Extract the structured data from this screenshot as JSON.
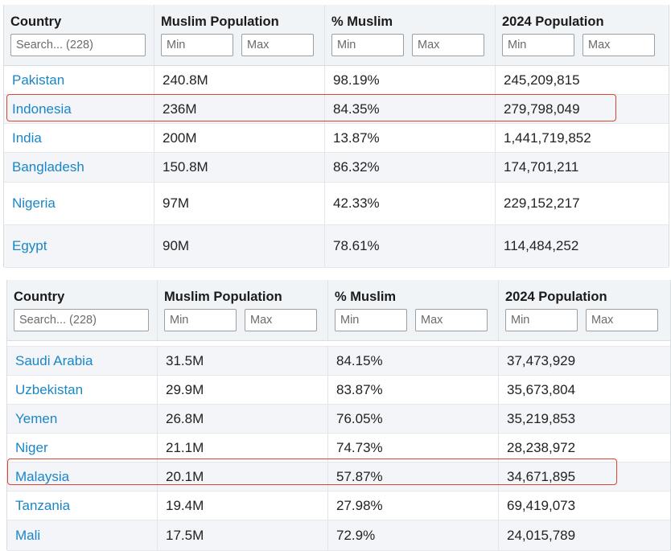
{
  "table1": {
    "headers": {
      "country": "Country",
      "muslim_population": "Muslim Population",
      "percent_muslim": "% Muslim",
      "population_2024": "2024 Population"
    },
    "filters": {
      "search_placeholder": "Search... (228)",
      "min_placeholder": "Min",
      "max_placeholder": "Max"
    },
    "rows": [
      {
        "country": "Pakistan",
        "muslim": "240.8M",
        "percent": "98.19%",
        "pop": "245,209,815"
      },
      {
        "country": "Indonesia",
        "muslim": "236M",
        "percent": "84.35%",
        "pop": "279,798,049"
      },
      {
        "country": "India",
        "muslim": "200M",
        "percent": "13.87%",
        "pop": "1,441,719,852"
      },
      {
        "country": "Bangladesh",
        "muslim": "150.8M",
        "percent": "86.32%",
        "pop": "174,701,211"
      },
      {
        "country": "Nigeria",
        "muslim": "97M",
        "percent": "42.33%",
        "pop": "229,152,217"
      },
      {
        "country": "Egypt",
        "muslim": "90M",
        "percent": "78.61%",
        "pop": "114,484,252"
      }
    ],
    "highlighted_row": "Indonesia"
  },
  "table2": {
    "headers": {
      "country": "Country",
      "muslim_population": "Muslim Population",
      "percent_muslim": "% Muslim",
      "population_2024": "2024 Population"
    },
    "filters": {
      "search_placeholder": "Search... (228)",
      "min_placeholder": "Min",
      "max_placeholder": "Max"
    },
    "rows": [
      {
        "country": "Saudi Arabia",
        "muslim": "31.5M",
        "percent": "84.15%",
        "pop": "37,473,929"
      },
      {
        "country": "Uzbekistan",
        "muslim": "29.9M",
        "percent": "83.87%",
        "pop": "35,673,804"
      },
      {
        "country": "Yemen",
        "muslim": "26.8M",
        "percent": "76.05%",
        "pop": "35,219,853"
      },
      {
        "country": "Niger",
        "muslim": "21.1M",
        "percent": "74.73%",
        "pop": "28,238,972"
      },
      {
        "country": "Malaysia",
        "muslim": "20.1M",
        "percent": "57.87%",
        "pop": "34,671,895"
      },
      {
        "country": "Tanzania",
        "muslim": "19.4M",
        "percent": "27.98%",
        "pop": "69,419,073"
      },
      {
        "country": "Mali",
        "muslim": "17.5M",
        "percent": "72.9%",
        "pop": "24,015,789"
      }
    ],
    "highlighted_row": "Malaysia"
  },
  "colors": {
    "country_link": "#1a86c6",
    "header_bg": "#f1f4f7",
    "alt_row_bg": "#f3f5f8",
    "highlight_border": "#d9452f"
  }
}
